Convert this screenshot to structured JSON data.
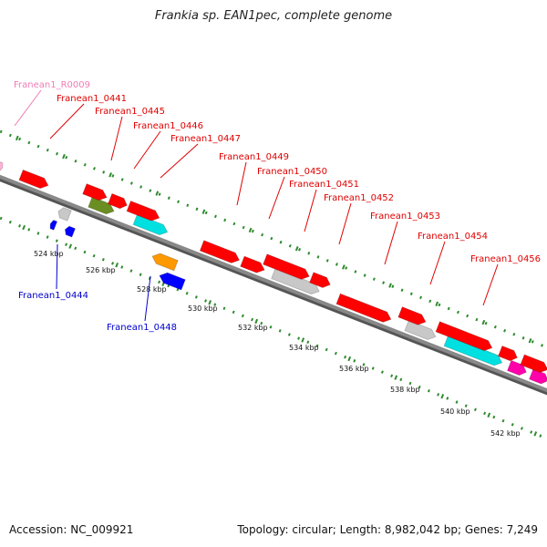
{
  "title": "Frankia sp. EAN1pec, complete genome",
  "footer": {
    "accession": "Accession: NC_009921",
    "summary": "Topology: circular; Length: 8,982,042 bp; Genes: 7,249"
  },
  "colors": {
    "backbone": "#888888",
    "dots": "#2e8b2e",
    "label_red": "#e00000",
    "label_blue": "#0000cc",
    "label_pink": "#f07cb4",
    "red": "#ff0000",
    "gray": "#c8c8c8",
    "cyan": "#00e0e0",
    "olive": "#6b8e23",
    "blue": "#0000ff",
    "orange": "#ff9900",
    "magenta": "#ff00aa",
    "pink": "#ffb3d9"
  },
  "ticks": [
    "524 kbp",
    "526 kbp",
    "528 kbp",
    "530 kbp",
    "532 kbp",
    "534 kbp",
    "536 kbp",
    "538 kbp",
    "540 kbp",
    "542 kbp"
  ],
  "labels": [
    {
      "id": "r0009",
      "text": "Franean1_R0009",
      "color": "label_pink"
    },
    {
      "id": "0441",
      "text": "Franean1_0441",
      "color": "label_red"
    },
    {
      "id": "0445",
      "text": "Franean1_0445",
      "color": "label_red"
    },
    {
      "id": "0446",
      "text": "Franean1_0446",
      "color": "label_red"
    },
    {
      "id": "0447",
      "text": "Franean1_0447",
      "color": "label_red"
    },
    {
      "id": "0449",
      "text": "Franean1_0449",
      "color": "label_red"
    },
    {
      "id": "0450",
      "text": "Franean1_0450",
      "color": "label_red"
    },
    {
      "id": "0451",
      "text": "Franean1_0451",
      "color": "label_red"
    },
    {
      "id": "0452",
      "text": "Franean1_0452",
      "color": "label_red"
    },
    {
      "id": "0453",
      "text": "Franean1_0453",
      "color": "label_red"
    },
    {
      "id": "0454",
      "text": "Franean1_0454",
      "color": "label_red"
    },
    {
      "id": "0456",
      "text": "Franean1_0456",
      "color": "label_red"
    },
    {
      "id": "0444",
      "text": "Franean1_0444",
      "color": "label_blue"
    },
    {
      "id": "0448",
      "text": "Franean1_0448",
      "color": "label_blue"
    }
  ],
  "genes": [
    {
      "color": "pink",
      "strand": 1,
      "row": 1
    },
    {
      "color": "red",
      "strand": 1,
      "row": 1
    },
    {
      "color": "olive",
      "strand": 1,
      "row": 1
    },
    {
      "color": "red",
      "strand": 1,
      "row": 2
    },
    {
      "color": "red",
      "strand": 1,
      "row": 2
    },
    {
      "color": "cyan",
      "strand": 1,
      "row": 1
    },
    {
      "color": "red",
      "strand": 1,
      "row": 2
    },
    {
      "color": "blue",
      "strand": -1,
      "row": 1
    },
    {
      "color": "blue",
      "strand": -1,
      "row": 1
    },
    {
      "color": "gray",
      "strand": -1,
      "row": 2
    },
    {
      "color": "blue",
      "strand": -1,
      "row": 3
    },
    {
      "color": "orange",
      "strand": -1,
      "row": 4
    },
    {
      "color": "red",
      "strand": 1,
      "row": 1
    },
    {
      "color": "red",
      "strand": 1,
      "row": 1
    },
    {
      "color": "gray",
      "strand": 1,
      "row": 1
    },
    {
      "color": "red",
      "strand": 1,
      "row": 2
    },
    {
      "color": "red",
      "strand": 1,
      "row": 2
    },
    {
      "color": "red",
      "strand": 1,
      "row": 1
    },
    {
      "color": "gray",
      "strand": 1,
      "row": 1
    },
    {
      "color": "red",
      "strand": 1,
      "row": 2
    },
    {
      "color": "cyan",
      "strand": 1,
      "row": 1
    },
    {
      "color": "red",
      "strand": 1,
      "row": 2
    },
    {
      "color": "red",
      "strand": 1,
      "row": 3
    },
    {
      "color": "magenta",
      "strand": 1,
      "row": 1
    },
    {
      "color": "magenta",
      "strand": 1,
      "row": 1
    },
    {
      "color": "red",
      "strand": 1,
      "row": 2
    }
  ]
}
